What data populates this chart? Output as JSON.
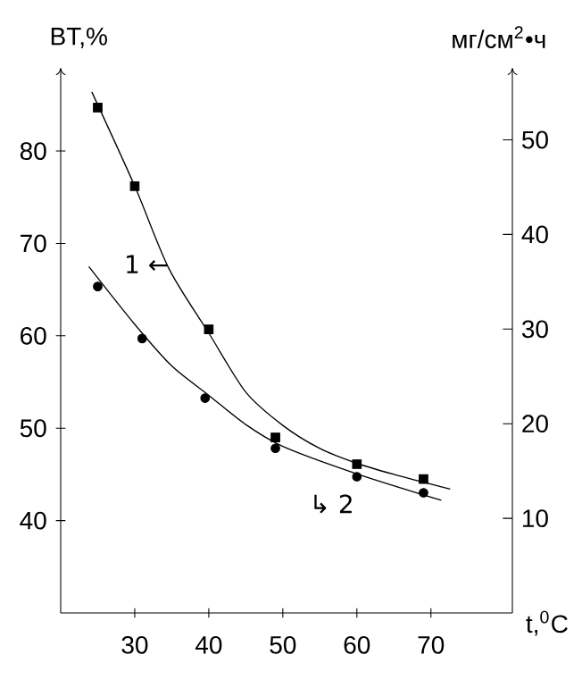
{
  "chart_data": {
    "type": "scatter",
    "xlabel": "t,$^{0}$C",
    "ylabel": "BT,%",
    "y2label": "мг/см$^{2}$•ч",
    "xlim": [
      20,
      81
    ],
    "xticks": [
      30,
      40,
      50,
      60,
      70
    ],
    "ylim": [
      30,
      89
    ],
    "yticks": [
      40,
      50,
      60,
      70,
      80
    ],
    "y2lim": [
      0,
      57.6
    ],
    "y2ticks": [
      10,
      20,
      30,
      40,
      50
    ],
    "grid": false,
    "annotations": [
      "1 ←",
      "↳ 2"
    ],
    "series": [
      {
        "marker": "square",
        "color": "#000000",
        "x": [
          25,
          30,
          40,
          49,
          60,
          69
        ],
        "values": [
          84.7,
          76.2,
          60.7,
          49.0,
          46.1,
          44.5
        ]
      },
      {
        "type": "line",
        "marker": "none",
        "line_style": "solid",
        "color": "#000000",
        "x": [
          24.2,
          30,
          34.6,
          40,
          45,
          50,
          55,
          60,
          65,
          72.6
        ],
        "values": [
          86.4,
          76.2,
          67.3,
          60.3,
          53.9,
          50.3,
          47.8,
          46.2,
          45,
          43.4
        ]
      },
      {
        "marker": "circle",
        "axis": "y2",
        "color": "#000000",
        "x": [
          25,
          31,
          39.5,
          49,
          60,
          69
        ],
        "values": [
          34.5,
          29.0,
          22.7,
          17.4,
          14.4,
          12.7
        ]
      },
      {
        "type": "line",
        "marker": "none",
        "line_style": "solid",
        "axis": "y2",
        "color": "#000000",
        "x": [
          23.8,
          30,
          35,
          40,
          45,
          50,
          60,
          71.4
        ],
        "values": [
          36.6,
          30.5,
          26.1,
          23.0,
          19.9,
          17.6,
          14.7,
          11.9
        ]
      }
    ]
  }
}
